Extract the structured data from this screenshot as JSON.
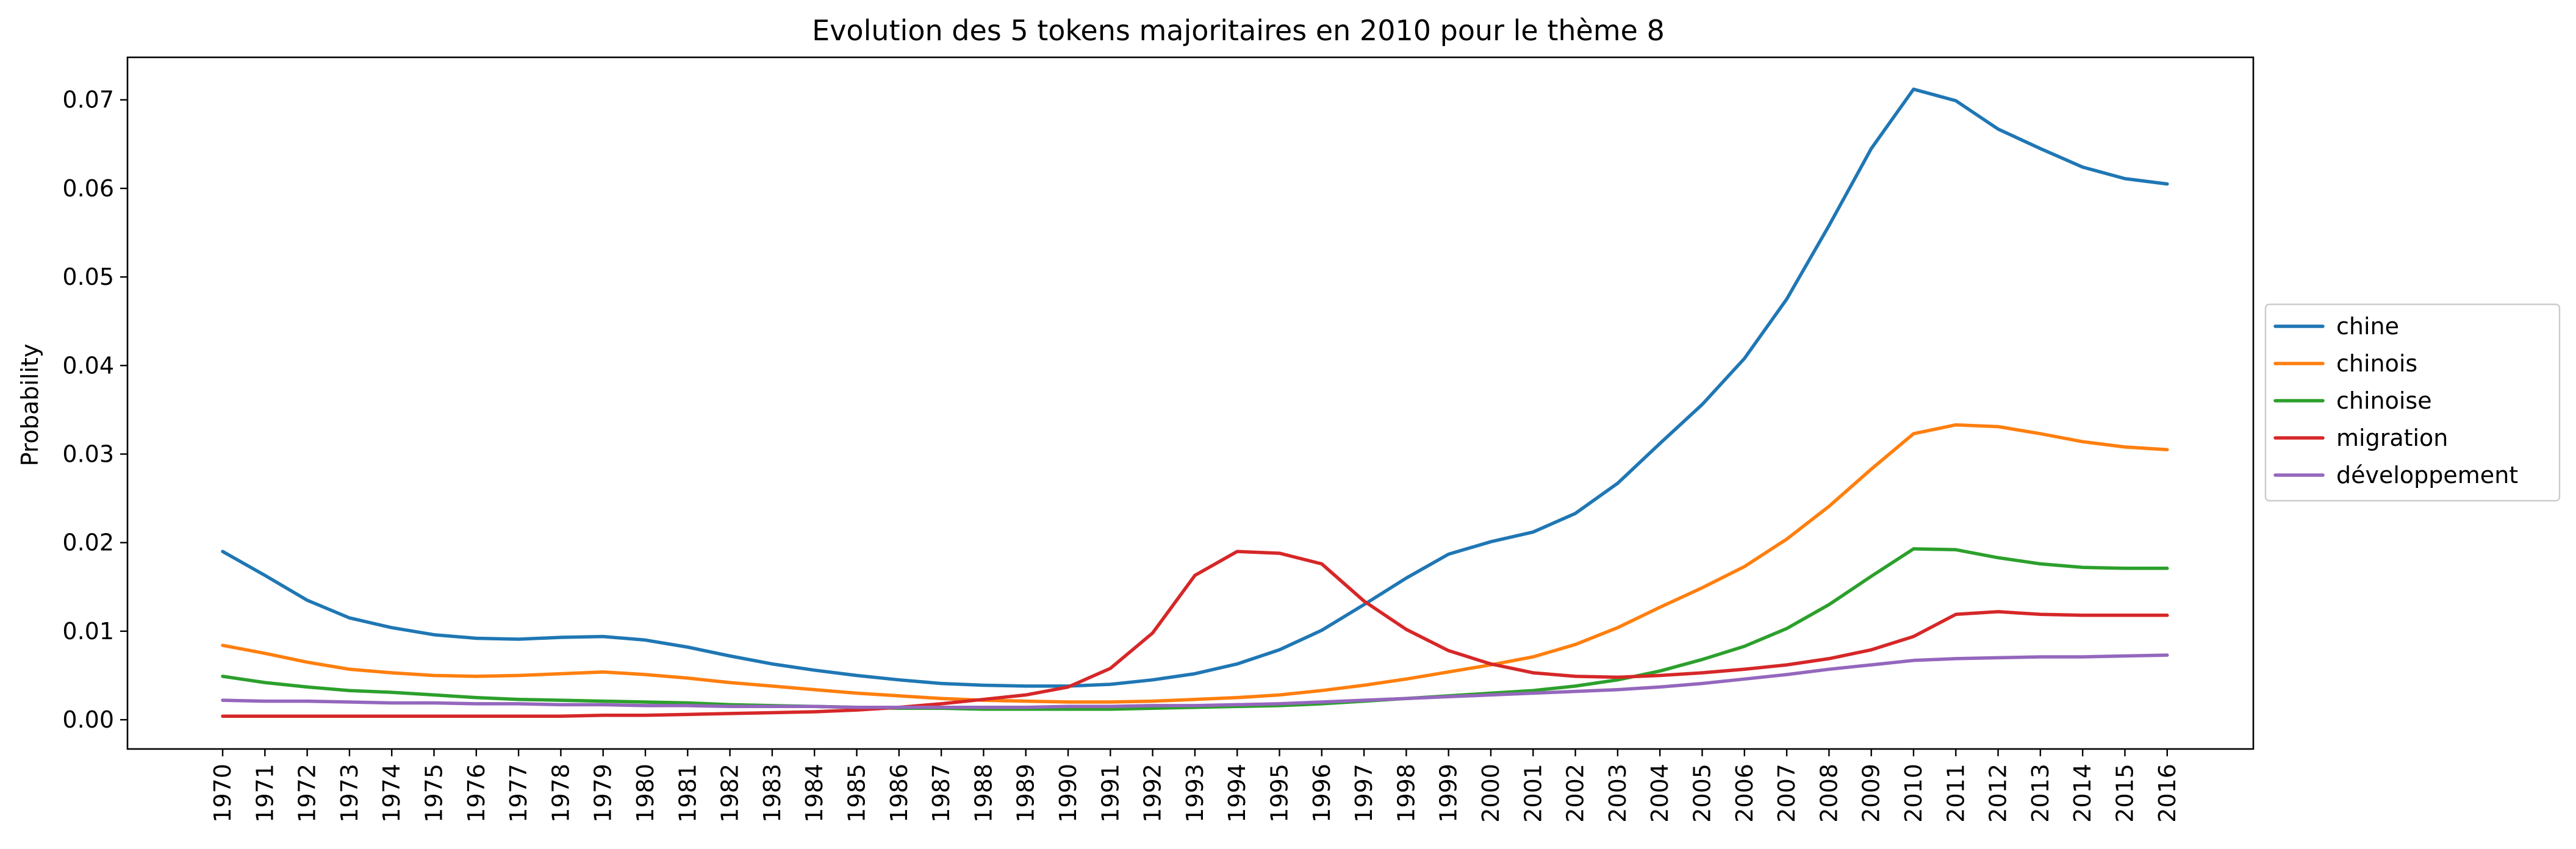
{
  "chart_data": {
    "type": "line",
    "title": "Evolution des 5 tokens majoritaires en 2010 pour le thème 8",
    "xlabel": "",
    "ylabel": "Probability",
    "ylim": [
      -0.0033,
      0.0748
    ],
    "yticks": [
      0.0,
      0.01,
      0.02,
      0.03,
      0.04,
      0.05,
      0.06,
      0.07
    ],
    "ytick_labels": [
      "0.00",
      "0.01",
      "0.02",
      "0.03",
      "0.04",
      "0.05",
      "0.06",
      "0.07"
    ],
    "grid": false,
    "legend_position": "center-right-outside",
    "x": [
      "1970",
      "1971",
      "1972",
      "1973",
      "1974",
      "1975",
      "1976",
      "1977",
      "1978",
      "1979",
      "1980",
      "1981",
      "1982",
      "1983",
      "1984",
      "1985",
      "1986",
      "1987",
      "1988",
      "1989",
      "1990",
      "1991",
      "1992",
      "1993",
      "1994",
      "1995",
      "1996",
      "1997",
      "1998",
      "1999",
      "2000",
      "2001",
      "2002",
      "2003",
      "2004",
      "2005",
      "2006",
      "2007",
      "2008",
      "2009",
      "2010",
      "2011",
      "2012",
      "2013",
      "2014",
      "2015",
      "2016"
    ],
    "series": [
      {
        "name": "chine",
        "color": "#1f77b4",
        "values": [
          0.019,
          0.0163,
          0.0135,
          0.0115,
          0.0104,
          0.0096,
          0.0092,
          0.0091,
          0.0093,
          0.0094,
          0.009,
          0.0082,
          0.0072,
          0.0063,
          0.0056,
          0.005,
          0.0045,
          0.0041,
          0.0039,
          0.0038,
          0.0038,
          0.004,
          0.0045,
          0.0052,
          0.0063,
          0.0079,
          0.0101,
          0.013,
          0.016,
          0.0187,
          0.0201,
          0.0212,
          0.0233,
          0.0267,
          0.0312,
          0.0356,
          0.0408,
          0.0475,
          0.0558,
          0.0645,
          0.0712,
          0.0699,
          0.0667,
          0.0645,
          0.0624,
          0.0611,
          0.0605
        ]
      },
      {
        "name": "chinois",
        "color": "#ff7f0e",
        "values": [
          0.0084,
          0.0075,
          0.0065,
          0.0057,
          0.0053,
          0.005,
          0.0049,
          0.005,
          0.0052,
          0.0054,
          0.0051,
          0.0047,
          0.0042,
          0.0038,
          0.0034,
          0.003,
          0.0027,
          0.0024,
          0.0022,
          0.0021,
          0.002,
          0.002,
          0.0021,
          0.0023,
          0.0025,
          0.0028,
          0.0033,
          0.0039,
          0.0046,
          0.0054,
          0.0062,
          0.0071,
          0.0085,
          0.0104,
          0.0127,
          0.0149,
          0.0173,
          0.0204,
          0.0241,
          0.0283,
          0.0323,
          0.0333,
          0.0331,
          0.0323,
          0.0314,
          0.0308,
          0.0305
        ]
      },
      {
        "name": "chinoise",
        "color": "#2ca02c",
        "values": [
          0.0049,
          0.0042,
          0.0037,
          0.0033,
          0.0031,
          0.0028,
          0.0025,
          0.0023,
          0.0022,
          0.0021,
          0.002,
          0.0019,
          0.0017,
          0.0016,
          0.0015,
          0.0014,
          0.0013,
          0.0013,
          0.0012,
          0.0012,
          0.0012,
          0.0012,
          0.0013,
          0.0014,
          0.0015,
          0.0016,
          0.0018,
          0.0021,
          0.0024,
          0.0027,
          0.003,
          0.0033,
          0.0038,
          0.0045,
          0.0055,
          0.0068,
          0.0083,
          0.0103,
          0.013,
          0.0162,
          0.0193,
          0.0192,
          0.0183,
          0.0176,
          0.0172,
          0.0171,
          0.0171
        ]
      },
      {
        "name": "migration",
        "color": "#d62728",
        "values": [
          0.0004,
          0.0004,
          0.0004,
          0.0004,
          0.0004,
          0.0004,
          0.0004,
          0.0004,
          0.0004,
          0.0005,
          0.0005,
          0.0006,
          0.0007,
          0.0008,
          0.0009,
          0.0011,
          0.0014,
          0.0018,
          0.0023,
          0.0028,
          0.0037,
          0.0058,
          0.0098,
          0.0163,
          0.019,
          0.0188,
          0.0176,
          0.0134,
          0.0102,
          0.0078,
          0.0063,
          0.0053,
          0.0049,
          0.0048,
          0.005,
          0.0053,
          0.0057,
          0.0062,
          0.0069,
          0.0079,
          0.0094,
          0.0119,
          0.0122,
          0.0119,
          0.0118,
          0.0118,
          0.0118
        ]
      },
      {
        "name": "développement",
        "color": "#9467bd",
        "values": [
          0.0022,
          0.0021,
          0.0021,
          0.002,
          0.0019,
          0.0019,
          0.0018,
          0.0018,
          0.0017,
          0.0017,
          0.0016,
          0.0016,
          0.0015,
          0.0015,
          0.0015,
          0.0014,
          0.0014,
          0.0014,
          0.0014,
          0.0014,
          0.0015,
          0.0015,
          0.0016,
          0.0016,
          0.0017,
          0.0018,
          0.002,
          0.0022,
          0.0024,
          0.0026,
          0.0028,
          0.003,
          0.0032,
          0.0034,
          0.0037,
          0.0041,
          0.0046,
          0.0051,
          0.0057,
          0.0062,
          0.0067,
          0.0069,
          0.007,
          0.0071,
          0.0071,
          0.0072,
          0.0073
        ]
      }
    ]
  }
}
